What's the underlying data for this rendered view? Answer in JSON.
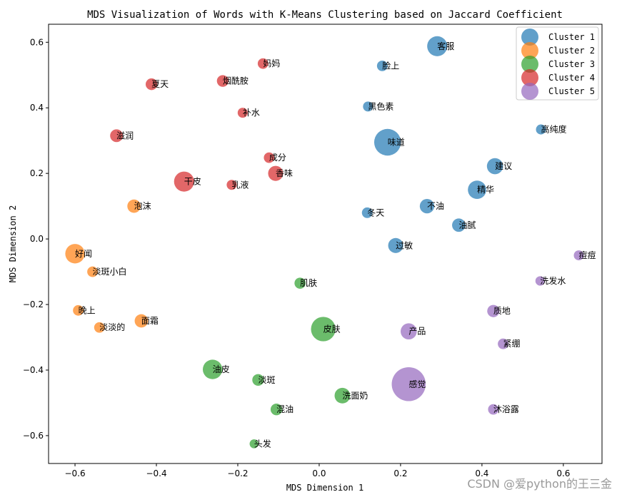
{
  "watermark": "CSDN @爱python的王三金",
  "chart_data": {
    "type": "scatter",
    "title": "MDS Visualization of Words with K-Means Clustering based on Jaccard Coefficient",
    "xlabel": "MDS Dimension 1",
    "ylabel": "MDS Dimension 2",
    "xlim": [
      -0.665,
      0.695
    ],
    "ylim": [
      -0.685,
      0.655
    ],
    "xticks": [
      -0.6,
      -0.4,
      -0.2,
      0.0,
      0.2,
      0.4,
      0.6
    ],
    "yticks": [
      -0.6,
      -0.4,
      -0.2,
      0.0,
      0.2,
      0.4,
      0.6
    ],
    "xtick_labels": [
      "−0.6",
      "−0.4",
      "−0.2",
      "0.0",
      "0.2",
      "0.4",
      "0.6"
    ],
    "ytick_labels": [
      "−0.6",
      "−0.4",
      "−0.2",
      "0.0",
      "0.2",
      "0.4",
      "0.6"
    ],
    "grid": false,
    "legend_position": "top-right",
    "marker_alpha": 0.7,
    "series": [
      {
        "name": "Cluster 1",
        "color": "#1f77b4",
        "points": [
          {
            "label": "客服",
            "x": 0.29,
            "y": 0.588,
            "size": 0.036
          },
          {
            "label": "脸上",
            "x": 0.155,
            "y": 0.528,
            "size": 0.019
          },
          {
            "label": "黑色素",
            "x": 0.12,
            "y": 0.404,
            "size": 0.018
          },
          {
            "label": "高纯度",
            "x": 0.545,
            "y": 0.334,
            "size": 0.018
          },
          {
            "label": "味道",
            "x": 0.168,
            "y": 0.295,
            "size": 0.048
          },
          {
            "label": "建议",
            "x": 0.432,
            "y": 0.222,
            "size": 0.029
          },
          {
            "label": "精华",
            "x": 0.388,
            "y": 0.15,
            "size": 0.033
          },
          {
            "label": "不油",
            "x": 0.265,
            "y": 0.1,
            "size": 0.026
          },
          {
            "label": "冬天",
            "x": 0.118,
            "y": 0.08,
            "size": 0.019
          },
          {
            "label": "油腻",
            "x": 0.343,
            "y": 0.042,
            "size": 0.024
          },
          {
            "label": "过敏",
            "x": 0.188,
            "y": -0.02,
            "size": 0.027
          }
        ]
      },
      {
        "name": "Cluster 2",
        "color": "#ff7f0e",
        "points": [
          {
            "label": "泡沫",
            "x": -0.455,
            "y": 0.1,
            "size": 0.024
          },
          {
            "label": "好闻",
            "x": -0.6,
            "y": -0.045,
            "size": 0.035
          },
          {
            "label": "淡斑小白",
            "x": -0.557,
            "y": -0.1,
            "size": 0.019
          },
          {
            "label": "晚上",
            "x": -0.592,
            "y": -0.218,
            "size": 0.019
          },
          {
            "label": "面霜",
            "x": -0.437,
            "y": -0.25,
            "size": 0.024
          },
          {
            "label": "淡淡的",
            "x": -0.54,
            "y": -0.27,
            "size": 0.019
          }
        ]
      },
      {
        "name": "Cluster 3",
        "color": "#2ca02c",
        "points": [
          {
            "label": "肌肤",
            "x": -0.047,
            "y": -0.135,
            "size": 0.02
          },
          {
            "label": "皮肤",
            "x": 0.01,
            "y": -0.275,
            "size": 0.044
          },
          {
            "label": "油皮",
            "x": -0.262,
            "y": -0.398,
            "size": 0.035
          },
          {
            "label": "淡斑",
            "x": -0.15,
            "y": -0.43,
            "size": 0.021
          },
          {
            "label": "洗面奶",
            "x": 0.057,
            "y": -0.478,
            "size": 0.028
          },
          {
            "label": "混油",
            "x": -0.105,
            "y": -0.52,
            "size": 0.021
          },
          {
            "label": "头发",
            "x": -0.16,
            "y": -0.625,
            "size": 0.016
          }
        ]
      },
      {
        "name": "Cluster 4",
        "color": "#d62728",
        "points": [
          {
            "label": "妈妈",
            "x": -0.138,
            "y": 0.535,
            "size": 0.019
          },
          {
            "label": "夏天",
            "x": -0.412,
            "y": 0.472,
            "size": 0.021
          },
          {
            "label": "烟酰胺",
            "x": -0.237,
            "y": 0.482,
            "size": 0.021
          },
          {
            "label": "补水",
            "x": -0.188,
            "y": 0.385,
            "size": 0.018
          },
          {
            "label": "滋润",
            "x": -0.498,
            "y": 0.315,
            "size": 0.023
          },
          {
            "label": "成分",
            "x": -0.123,
            "y": 0.248,
            "size": 0.019
          },
          {
            "label": "香味",
            "x": -0.107,
            "y": 0.2,
            "size": 0.027
          },
          {
            "label": "干皮",
            "x": -0.332,
            "y": 0.175,
            "size": 0.036
          },
          {
            "label": "乳液",
            "x": -0.215,
            "y": 0.165,
            "size": 0.018
          }
        ]
      },
      {
        "name": "Cluster 5",
        "color": "#9467bd",
        "points": [
          {
            "label": "痘痘",
            "x": 0.638,
            "y": -0.05,
            "size": 0.018
          },
          {
            "label": "洗发水",
            "x": 0.543,
            "y": -0.128,
            "size": 0.017
          },
          {
            "label": "质地",
            "x": 0.428,
            "y": -0.22,
            "size": 0.022
          },
          {
            "label": "产品",
            "x": 0.22,
            "y": -0.282,
            "size": 0.029
          },
          {
            "label": "紧绷",
            "x": 0.452,
            "y": -0.32,
            "size": 0.019
          },
          {
            "label": "感觉",
            "x": 0.22,
            "y": -0.443,
            "size": 0.061
          },
          {
            "label": "沐浴露",
            "x": 0.428,
            "y": -0.52,
            "size": 0.019
          }
        ]
      }
    ]
  }
}
